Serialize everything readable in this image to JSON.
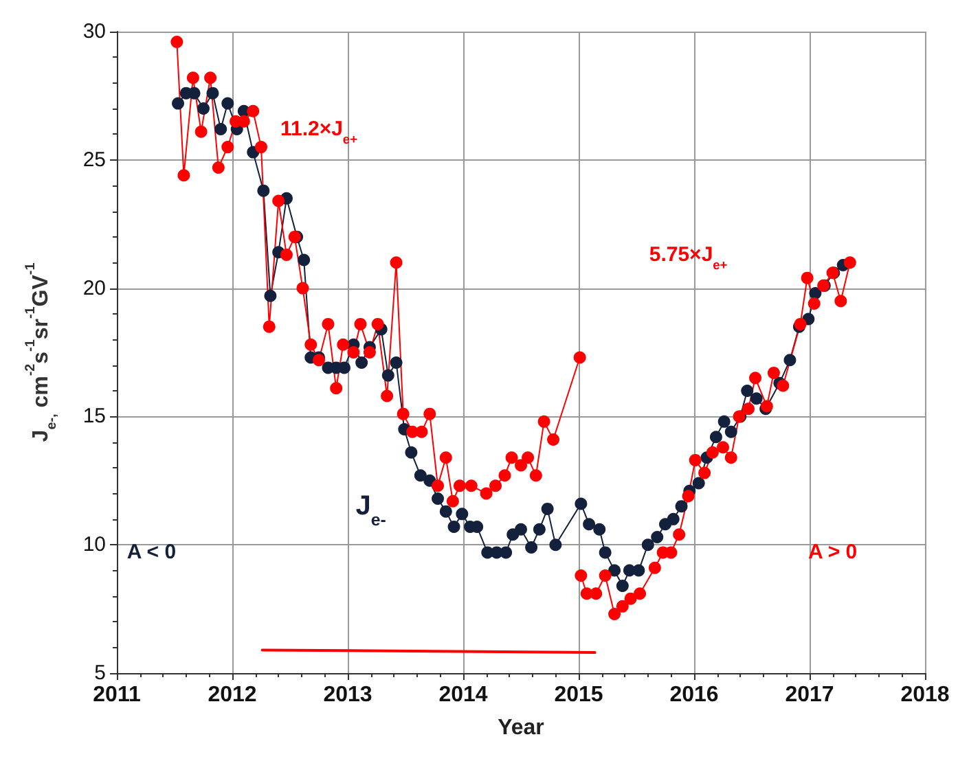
{
  "chart_data": {
    "type": "line",
    "xlabel": "Year",
    "ylabel": "J$_{e-,}$ cm$^{-2}$s$^{-1}$sr$^{-1}$GV$^{-1}$",
    "xlim": [
      2011,
      2018
    ],
    "xticks": [
      2011,
      2012,
      2013,
      2014,
      2015,
      2016,
      2017,
      2018
    ],
    "ylim": [
      5,
      30
    ],
    "yticks": [
      5,
      10,
      15,
      20,
      25,
      30
    ],
    "grid": true,
    "series": [
      {
        "name": "J$_{e-}$",
        "color": "#14213d",
        "marker": "circle",
        "x": [
          2011.53,
          2011.6,
          2011.67,
          2011.75,
          2011.83,
          2011.9,
          2011.96,
          2012.04,
          2012.1,
          2012.18,
          2012.27,
          2012.33,
          2012.4,
          2012.47,
          2012.56,
          2012.62,
          2012.68,
          2012.75,
          2012.83,
          2012.9,
          2012.97,
          2013.05,
          2013.12,
          2013.19,
          2013.29,
          2013.35,
          2013.42,
          2013.49,
          2013.55,
          2013.63,
          2013.71,
          2013.78,
          2013.85,
          2013.92,
          2013.99,
          2014.06,
          2014.12,
          2014.21,
          2014.29,
          2014.37,
          2014.43,
          2014.5,
          2014.59,
          2014.66,
          2014.73,
          2014.8,
          2015.02,
          2015.09,
          2015.18,
          2015.23,
          2015.31,
          2015.38,
          2015.44,
          2015.52,
          2015.6,
          2015.68,
          2015.75,
          2015.82,
          2015.89,
          2015.96,
          2016.04,
          2016.11,
          2016.19,
          2016.26,
          2016.32,
          2016.4,
          2016.46,
          2016.54,
          2016.62,
          2016.74,
          2016.83,
          2016.91,
          2016.99,
          2017.05,
          2017.13,
          2017.21,
          2017.29
        ],
        "values": [
          27.2,
          27.6,
          27.6,
          27.0,
          27.6,
          26.2,
          27.2,
          26.2,
          26.9,
          25.3,
          23.8,
          19.7,
          21.4,
          23.5,
          22.0,
          21.1,
          17.3,
          17.3,
          16.9,
          16.9,
          16.9,
          17.8,
          17.1,
          17.7,
          18.4,
          16.6,
          17.1,
          14.5,
          13.6,
          12.7,
          12.5,
          11.8,
          11.3,
          10.7,
          11.2,
          10.7,
          10.7,
          9.7,
          9.7,
          9.7,
          10.4,
          10.6,
          9.9,
          10.6,
          11.4,
          10.0,
          11.6,
          10.8,
          10.6,
          9.7,
          9.0,
          8.4,
          9.0,
          9.0,
          10.0,
          10.3,
          10.8,
          11.0,
          11.5,
          12.1,
          12.4,
          13.4,
          14.2,
          14.8,
          14.4,
          15.0,
          16.0,
          15.7,
          15.3,
          16.3,
          17.2,
          18.5,
          18.8,
          19.8,
          20.1,
          20.6,
          20.9
        ]
      },
      {
        "name": "11.2×J$_{e+}$",
        "color": "#ff0000",
        "marker": "circle",
        "x": [
          2011.52,
          2011.58,
          2011.66,
          2011.73,
          2011.81,
          2011.88,
          2011.96,
          2012.03,
          2012.1,
          2012.18,
          2012.25,
          2012.32,
          2012.4,
          2012.47,
          2012.54,
          2012.61,
          2012.68,
          2012.75,
          2012.83,
          2012.9,
          2012.96,
          2013.05,
          2013.11,
          2013.19,
          2013.26,
          2013.34,
          2013.42,
          2013.48,
          2013.56,
          2013.64,
          2013.71,
          2013.78,
          2013.85,
          2013.91,
          2013.97,
          2014.07,
          2014.2,
          2014.28,
          2014.36,
          2014.42,
          2014.5,
          2014.56,
          2014.63,
          2014.7,
          2014.78,
          2015.01
        ],
        "values": [
          29.6,
          24.4,
          28.2,
          26.1,
          28.2,
          24.7,
          25.5,
          26.5,
          26.5,
          26.9,
          25.5,
          18.5,
          23.4,
          21.3,
          22.0,
          20.0,
          17.8,
          17.2,
          18.6,
          16.1,
          17.8,
          17.5,
          18.6,
          17.5,
          18.6,
          15.8,
          21.0,
          15.1,
          14.4,
          14.4,
          15.1,
          12.3,
          13.4,
          11.7,
          12.3,
          12.3,
          12.0,
          12.3,
          12.7,
          13.4,
          13.1,
          13.4,
          12.7,
          14.8,
          14.1,
          17.3
        ]
      },
      {
        "name": "5.75×J$_{e+}$",
        "color": "#ff0000",
        "marker": "circle",
        "x": [
          2015.02,
          2015.07,
          2015.15,
          2015.23,
          2015.31,
          2015.38,
          2015.45,
          2015.53,
          2015.66,
          2015.73,
          2015.8,
          2015.87,
          2015.95,
          2016.01,
          2016.09,
          2016.16,
          2016.25,
          2016.32,
          2016.39,
          2016.47,
          2016.53,
          2016.63,
          2016.69,
          2016.77,
          2016.92,
          2016.98,
          2017.04,
          2017.12,
          2017.2,
          2017.27,
          2017.35
        ],
        "values": [
          8.8,
          8.1,
          8.1,
          8.8,
          7.3,
          7.6,
          7.9,
          8.1,
          9.1,
          9.7,
          9.7,
          10.4,
          11.9,
          13.3,
          12.8,
          13.6,
          13.8,
          13.4,
          15.0,
          15.3,
          16.5,
          15.4,
          16.7,
          16.2,
          18.6,
          20.4,
          19.4,
          20.1,
          20.6,
          19.5,
          21.0
        ]
      },
      {
        "color": "#ff0000",
        "marker": "none",
        "x": [
          2012.26,
          2015.14
        ],
        "values": [
          5.9,
          5.8
        ]
      }
    ],
    "annotations": [
      "A < 0",
      "A > 0"
    ]
  }
}
